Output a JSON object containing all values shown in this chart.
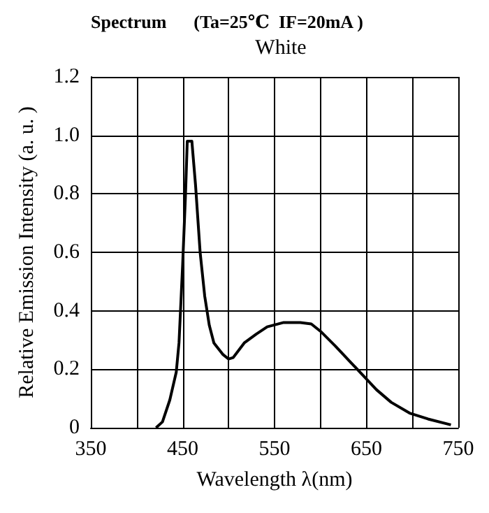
{
  "chart_data": {
    "type": "line",
    "title": "Spectrum      (Ta=25℃  IF=20mA )",
    "subtitle": "White",
    "xlabel": "Wavelength λ(nm)",
    "ylabel": "Relative Emission Intensity (a. u. )",
    "x": [
      421,
      428,
      436,
      443,
      446,
      450,
      453,
      455,
      460,
      464,
      469,
      474,
      479,
      484,
      494,
      500,
      505,
      517,
      530,
      542,
      560,
      578,
      590,
      600,
      616,
      631,
      646,
      661,
      677,
      697,
      717,
      742
    ],
    "series": [
      {
        "color": "#000000",
        "values": [
          0,
          0.02,
          0.095,
          0.19,
          0.29,
          0.56,
          0.79,
          0.98,
          0.98,
          0.83,
          0.6,
          0.45,
          0.35,
          0.29,
          0.25,
          0.235,
          0.24,
          0.29,
          0.32,
          0.345,
          0.36,
          0.36,
          0.355,
          0.33,
          0.28,
          0.23,
          0.18,
          0.13,
          0.087,
          0.05,
          0.03,
          0.01
        ]
      }
    ],
    "xlim": [
      350,
      750
    ],
    "xticks": [
      350,
      {
        "value": 400,
        "label": null
      },
      450,
      {
        "value": 500,
        "label": null
      },
      550,
      {
        "value": 600,
        "label": null
      },
      650,
      {
        "value": 700,
        "label": null
      },
      750
    ],
    "ylim": [
      0,
      1.2
    ],
    "yticks": [
      0,
      0.2,
      0.4,
      0.6,
      0.8,
      {
        "value": 1,
        "label": "1.0"
      },
      1.2
    ],
    "grid": true,
    "marker": "none",
    "line_style": "solid"
  }
}
